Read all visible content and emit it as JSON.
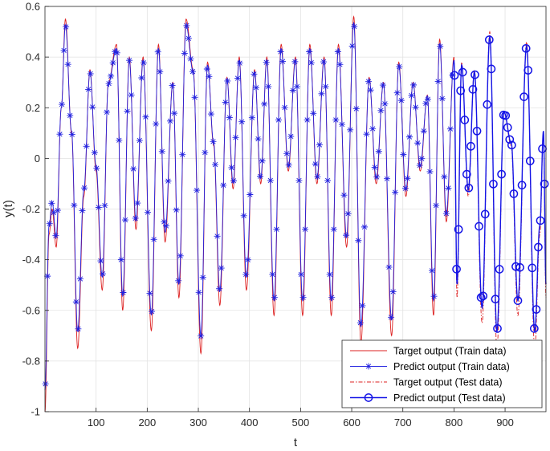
{
  "chart_data": {
    "type": "line",
    "xlabel": "t",
    "ylabel": "y(t)",
    "xlim": [
      0,
      980
    ],
    "ylim": [
      -1,
      0.6
    ],
    "xticks": [
      100,
      200,
      300,
      400,
      500,
      600,
      700,
      800,
      900
    ],
    "yticks": [
      -1,
      -0.8,
      -0.6,
      -0.4,
      -0.2,
      0,
      0.2,
      0.4,
      0.6
    ],
    "grid": true,
    "legend_position": "bottom-right",
    "train_range": [
      0,
      800
    ],
    "test_range": [
      800,
      980
    ],
    "sample_step": 4,
    "envelope_keypoints": {
      "t": [
        0,
        8,
        14,
        22,
        32,
        40,
        52,
        64,
        76,
        88,
        100,
        112,
        124,
        140,
        152,
        165,
        178,
        192,
        208,
        222,
        235,
        250,
        262,
        276,
        290,
        305,
        318,
        330,
        342,
        356,
        368,
        380,
        394,
        410,
        422,
        434,
        448,
        462,
        476,
        490,
        504,
        518,
        532,
        546,
        560,
        574,
        590,
        604,
        618,
        634,
        648,
        662,
        678,
        692,
        706,
        720,
        734,
        748,
        760,
        772,
        785,
        800,
        806,
        815,
        828,
        840,
        855,
        870,
        884,
        898,
        912,
        925,
        942,
        958,
        968,
        975,
        980
      ],
      "y": [
        -1.0,
        -0.3,
        -0.2,
        -0.35,
        0.2,
        0.55,
        0.1,
        -0.75,
        -0.15,
        0.35,
        -0.05,
        -0.52,
        0.3,
        0.45,
        -0.6,
        0.4,
        -0.28,
        0.4,
        -0.68,
        0.45,
        -0.33,
        0.3,
        -0.55,
        0.55,
        0.35,
        -0.77,
        0.38,
        0.05,
        -0.58,
        0.32,
        -0.12,
        0.4,
        -0.52,
        0.35,
        -0.1,
        0.4,
        -0.62,
        0.45,
        -0.05,
        0.4,
        -0.62,
        0.45,
        -0.1,
        0.4,
        -0.62,
        0.45,
        -0.35,
        0.56,
        -0.73,
        0.32,
        -0.1,
        0.3,
        -0.7,
        0.38,
        -0.15,
        0.3,
        -0.05,
        0.25,
        -0.62,
        0.47,
        -0.25,
        0.4,
        -0.55,
        0.38,
        -0.15,
        0.35,
        -0.65,
        0.5,
        -0.75,
        0.18,
        0.05,
        -0.62,
        0.46,
        -0.75,
        -0.3,
        0.1,
        -0.55
      ]
    },
    "series": [
      {
        "name": "Target output (Train data)",
        "color": "#dd2020",
        "style": "solid",
        "marker": "none"
      },
      {
        "name": "Predict output (Train data)",
        "color": "#2323e0",
        "style": "solid",
        "marker": "asterisk"
      },
      {
        "name": "Target output (Test data)",
        "color": "#dd2020",
        "style": "dash-dot",
        "marker": "none"
      },
      {
        "name": "Predict output (Test data)",
        "color": "#1414e6",
        "style": "solid",
        "marker": "circle"
      }
    ]
  }
}
